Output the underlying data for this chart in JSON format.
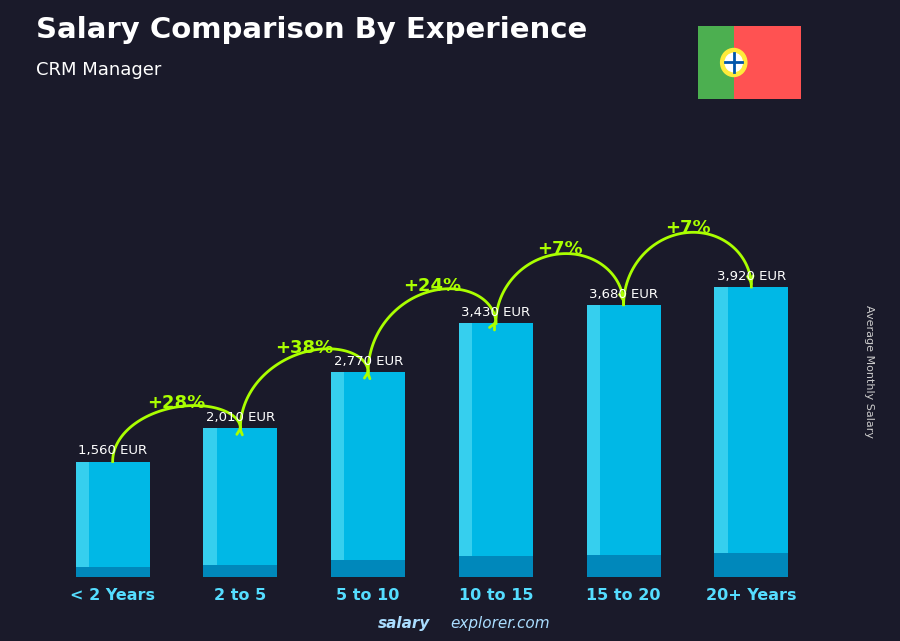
{
  "title": "Salary Comparison By Experience",
  "subtitle": "CRM Manager",
  "categories": [
    "< 2 Years",
    "2 to 5",
    "5 to 10",
    "10 to 15",
    "15 to 20",
    "20+ Years"
  ],
  "values": [
    1560,
    2010,
    2770,
    3430,
    3680,
    3920
  ],
  "labels": [
    "1,560 EUR",
    "2,010 EUR",
    "2,770 EUR",
    "3,430 EUR",
    "3,680 EUR",
    "3,920 EUR"
  ],
  "pct_changes": [
    null,
    "+28%",
    "+38%",
    "+24%",
    "+7%",
    "+7%"
  ],
  "bar_color": "#00b8e6",
  "bar_highlight": "#40d4f0",
  "bar_shadow": "#0088bb",
  "bg_color": "#1a1a2a",
  "title_color": "#ffffff",
  "label_color": "#ffffff",
  "pct_color": "#aaff00",
  "xticklabel_color": "#55ddff",
  "ylabel_text": "Average Monthly Salary",
  "footer_bold": "salary",
  "footer_normal": "explorer.com",
  "footer_color": "#aaddff",
  "ylim": [
    0,
    5200
  ],
  "flag_green": "#4caf50",
  "flag_red": "#ff5252",
  "flag_yellow": "#ffeb3b"
}
